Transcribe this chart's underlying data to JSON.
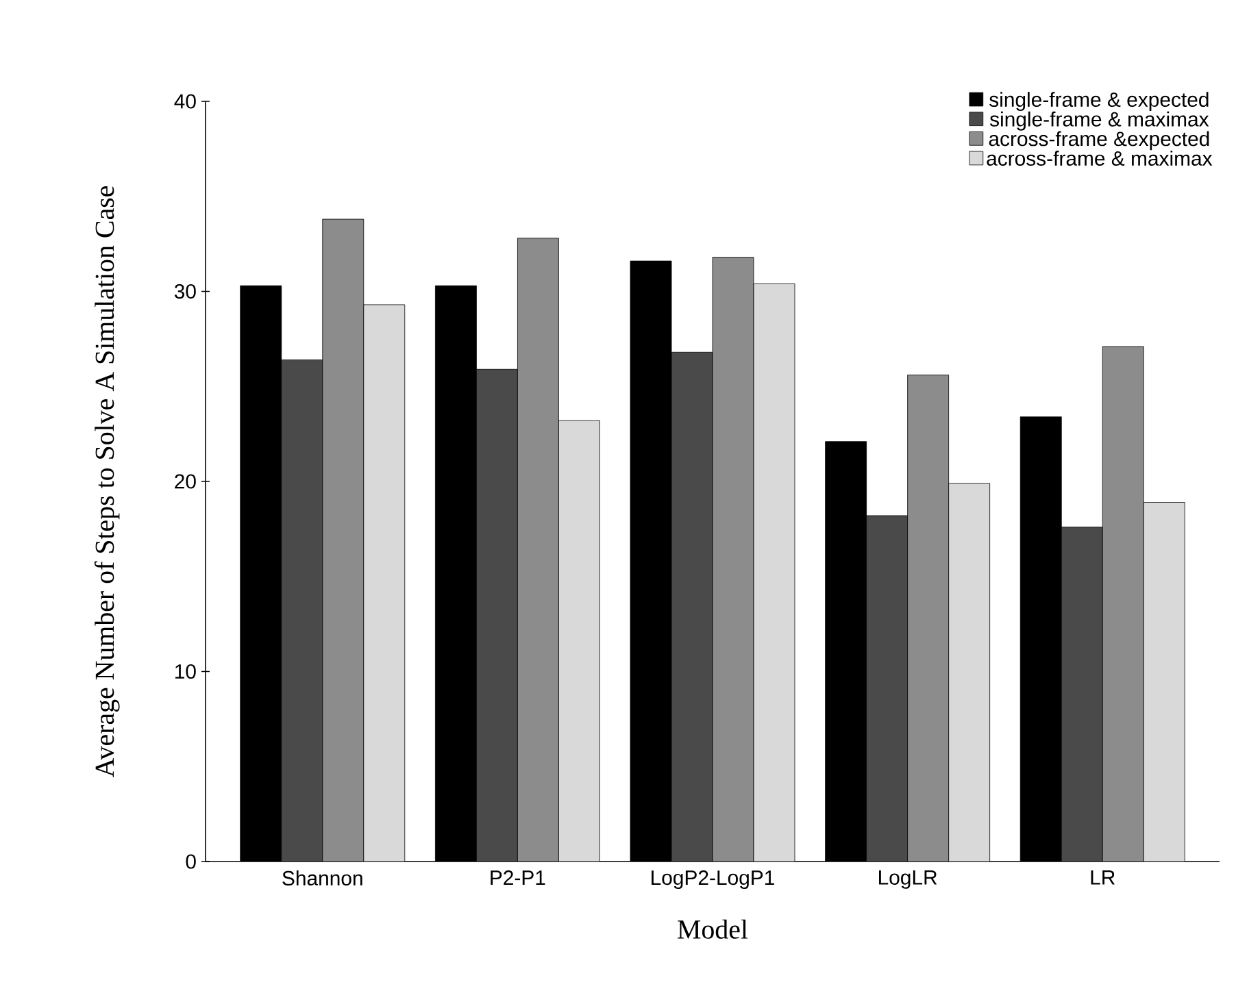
{
  "chart_data": {
    "type": "bar",
    "xlabel": "Model",
    "ylabel": "Average Number of Steps to Solve A Simulation Case",
    "categories": [
      "Shannon",
      "P2-P1",
      "LogP2-LogP1",
      "LogLR",
      "LR"
    ],
    "series": [
      {
        "name": "single-frame & expected",
        "color": "#000000",
        "values": [
          30.3,
          30.3,
          31.6,
          22.1,
          23.4
        ]
      },
      {
        "name": "single-frame & maximax",
        "color": "#4a4a4a",
        "values": [
          26.4,
          25.9,
          26.8,
          18.2,
          17.6
        ]
      },
      {
        "name": "across-frame &expected",
        "color": "#8c8c8c",
        "values": [
          33.8,
          32.8,
          31.8,
          25.6,
          27.1
        ]
      },
      {
        "name": "across-frame & maximax",
        "color": "#d9d9d9",
        "values": [
          29.3,
          23.2,
          30.4,
          19.9,
          18.9
        ]
      }
    ],
    "ylim": [
      0,
      40
    ],
    "yticks": [
      0,
      10,
      20,
      30,
      40
    ],
    "grid": false,
    "legend": "top right"
  }
}
